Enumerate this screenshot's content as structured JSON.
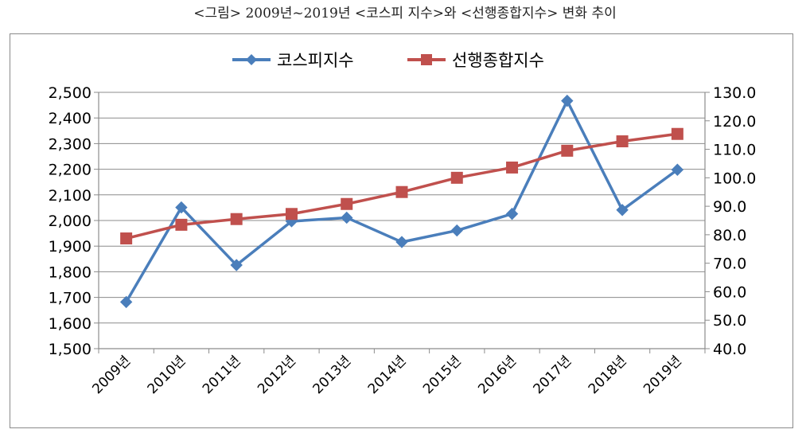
{
  "caption": "<그림>  2009년~2019년 <코스피 지수>와 <선행종합지수> 변화 추이",
  "chart_data": {
    "type": "line",
    "categories": [
      "2009년",
      "2010년",
      "2011년",
      "2012년",
      "2013년",
      "2014년",
      "2015년",
      "2016년",
      "2017년",
      "2018년",
      "2019년"
    ],
    "series": [
      {
        "name": "코스피지수",
        "axis": "left",
        "color": "#4a7ebb",
        "marker": "diamond",
        "values": [
          1682,
          2051,
          1826,
          1997,
          2011,
          1916,
          1961,
          2026,
          2467,
          2041,
          2198
        ]
      },
      {
        "name": "선행종합지수",
        "axis": "right",
        "color": "#c0504d",
        "marker": "square",
        "values": [
          78.7,
          83.5,
          85.5,
          87.3,
          90.8,
          95.0,
          100.0,
          103.6,
          109.5,
          112.8,
          115.4
        ]
      }
    ],
    "y_left": {
      "min": 1500,
      "max": 2500,
      "step": 100,
      "ticks": [
        "1,500",
        "1,600",
        "1,700",
        "1,800",
        "1,900",
        "2,000",
        "2,100",
        "2,200",
        "2,300",
        "2,400",
        "2,500"
      ]
    },
    "y_right": {
      "min": 40,
      "max": 130,
      "step": 10,
      "ticks": [
        "40.0",
        "50.0",
        "60.0",
        "70.0",
        "80.0",
        "90.0",
        "100.0",
        "110.0",
        "120.0",
        "130.0"
      ]
    },
    "legend": "top",
    "grid": "horizontal"
  }
}
